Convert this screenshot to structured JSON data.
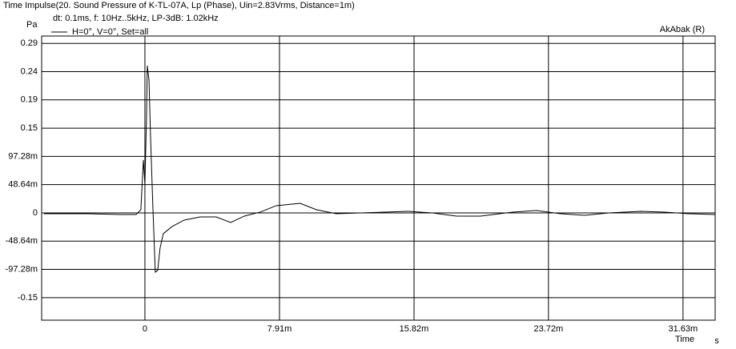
{
  "chart_data": {
    "type": "line",
    "title": "Time Impulse(20. Sound Pressure of K-TL-07A, Lp (Phase), Uin=2.83Vrms, Distance=1m)",
    "subtitle": "dt: 0.1ms, f: 10Hz..5kHz, LP-3dB: 1.02kHz",
    "y_label": "Pa",
    "x_label": "Time",
    "x_unit": "s",
    "annotation": "AkAbak (R)",
    "x": [
      -0.00593,
      -0.00334,
      -0.00146,
      -0.00052,
      -0.00024,
      -9e-05,
      0,
      9e-05,
      0.00014,
      0.00024,
      0.00033,
      0.00047,
      0.00061,
      0.00075,
      0.00089,
      0.00108,
      0.0016,
      0.00231,
      0.00325,
      0.00419,
      0.00504,
      0.00584,
      0.00678,
      0.00772,
      0.00913,
      0.01008,
      0.01125,
      0.01266,
      0.01408,
      0.01549,
      0.0169,
      0.01831,
      0.01973,
      0.02161,
      0.02302,
      0.02443,
      0.02585,
      0.02726,
      0.02914,
      0.03056,
      0.03197,
      0.0335
    ],
    "series": [
      {
        "name": "H=0°, V=0°, Set=all",
        "color": "#000000",
        "values": [
          -0.0014,
          -0.0014,
          -0.0028,
          -0.0028,
          0.0055,
          0.091,
          0.0496,
          0.16,
          0.2535,
          0.229,
          0.132,
          0.0083,
          -0.102,
          -0.099,
          -0.0606,
          -0.0358,
          -0.0234,
          -0.0124,
          -0.0069,
          -0.0069,
          -0.0165,
          -0.0055,
          0.0014,
          0.0124,
          0.0165,
          0.0055,
          -0.0014,
          0,
          0.0014,
          0.0028,
          0,
          -0.0055,
          -0.0055,
          0.0014,
          0.0041,
          -0.0014,
          -0.0041,
          0,
          0.0028,
          0.0014,
          -0.0014,
          -0.0028
        ]
      }
    ],
    "xlim": [
      -0.00607,
      0.03352
    ],
    "ylim": [
      -0.1847,
      0.3045
    ],
    "xticks": [
      0,
      {
        "value": 0.00791,
        "label": "7.91m"
      },
      {
        "value": 0.01582,
        "label": "15.82m"
      },
      {
        "value": 0.02372,
        "label": "23.72m"
      },
      {
        "value": 0.03163,
        "label": "31.63m"
      }
    ],
    "yticks": [
      {
        "value": 0.2918,
        "label": "0.29"
      },
      {
        "value": 0.2432,
        "label": "0.24"
      },
      {
        "value": 0.1946,
        "label": "0.19"
      },
      {
        "value": 0.1459,
        "label": "0.15"
      },
      {
        "value": 0.09728,
        "label": "97.28m"
      },
      {
        "value": 0.04864,
        "label": "48.64m"
      },
      0,
      {
        "value": -0.04864,
        "label": "-48.64m"
      },
      {
        "value": -0.09728,
        "label": "-97.28m"
      },
      {
        "value": -0.1459,
        "label": "-0.15"
      }
    ],
    "grid": true
  }
}
